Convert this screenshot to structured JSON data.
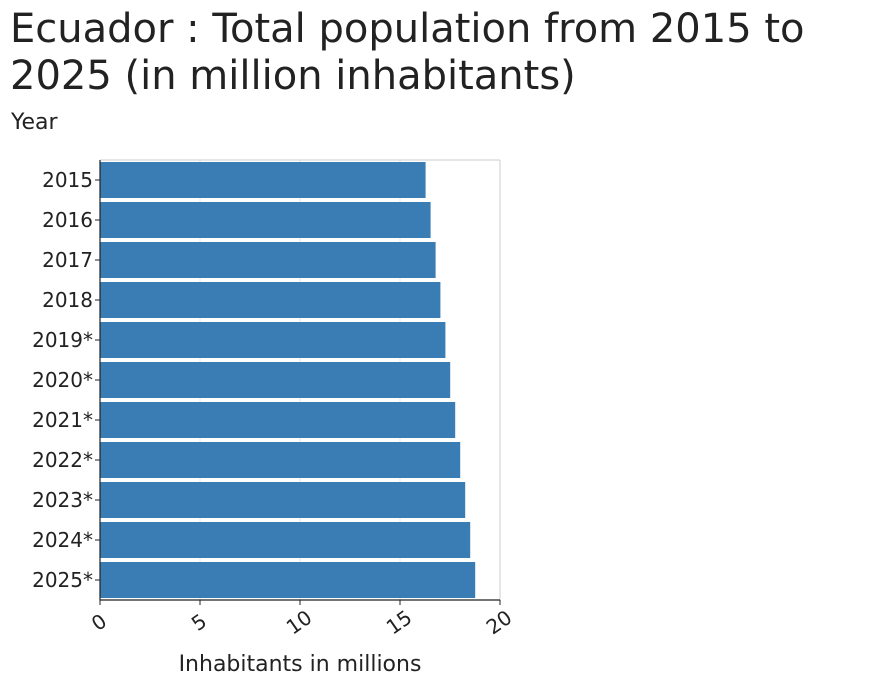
{
  "chart_data": {
    "type": "bar",
    "orientation": "horizontal",
    "title": "Ecuador : Total population from 2015 to 2025 (in million inhabitants)",
    "ylabel": "Year",
    "xlabel": "Inhabitants in millions",
    "categories": [
      "2015",
      "2016",
      "2017",
      "2018",
      "2019*",
      "2020*",
      "2021*",
      "2022*",
      "2023*",
      "2024*",
      "2025*"
    ],
    "values": [
      16.28,
      16.53,
      16.78,
      17.02,
      17.27,
      17.51,
      17.76,
      18.01,
      18.26,
      18.51,
      18.76
    ],
    "xlim": [
      0,
      20
    ],
    "xticks": [
      "0",
      "5",
      "10",
      "15",
      "20"
    ],
    "grid": true,
    "bar_color": "#3a7db5"
  }
}
